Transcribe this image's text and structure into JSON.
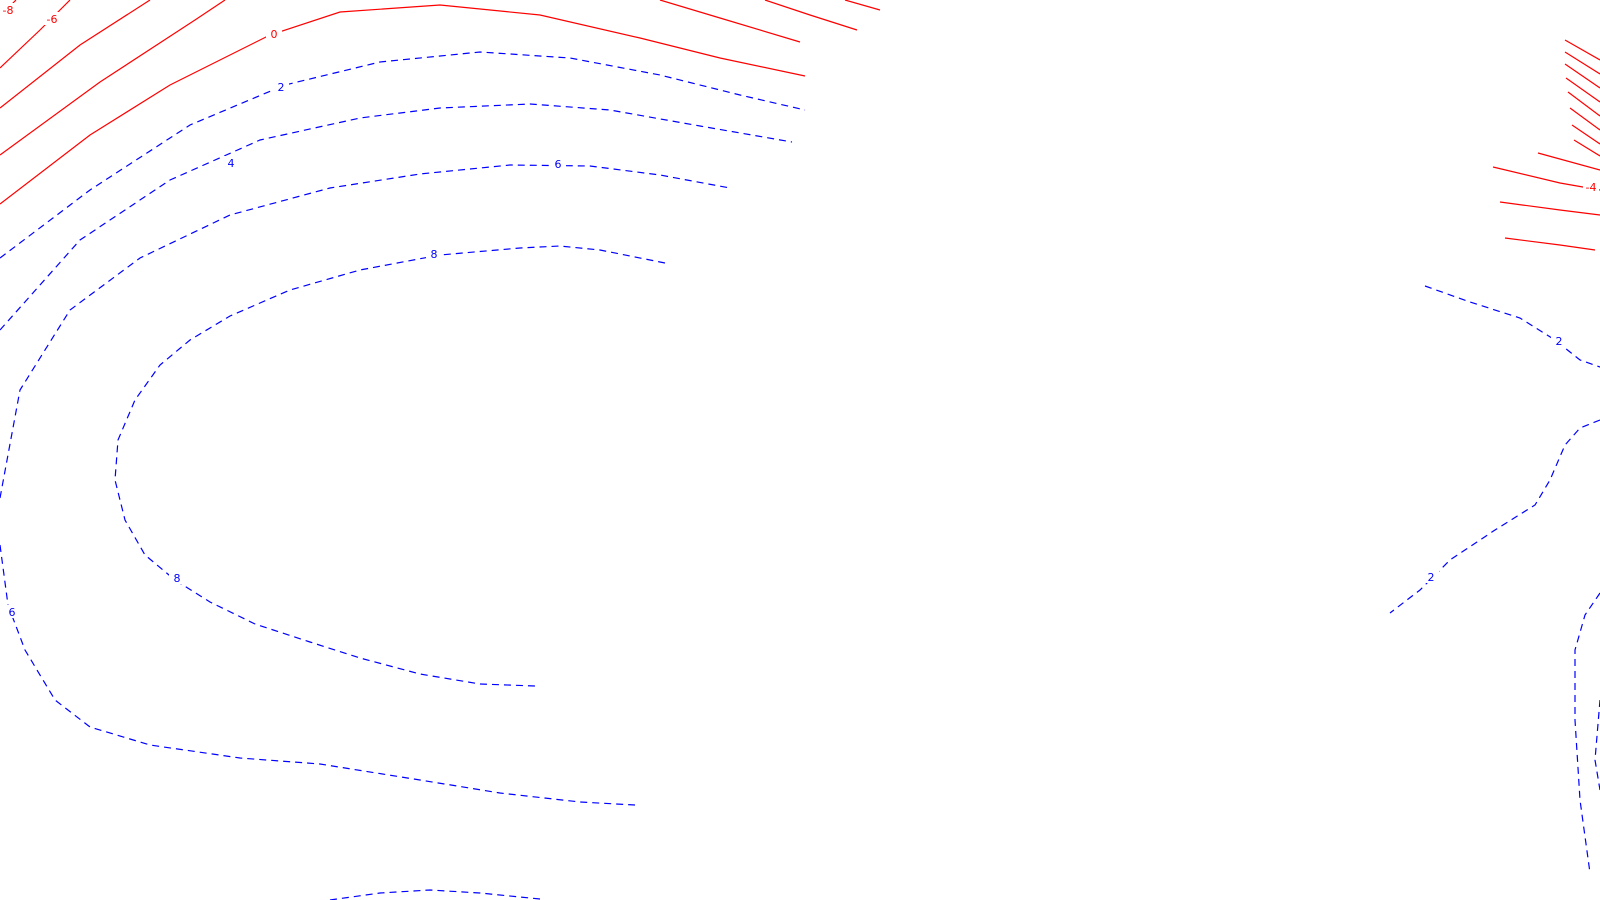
{
  "chart_data": {
    "type": "contour",
    "title": "",
    "xlabel": "",
    "ylabel": "",
    "grid": false,
    "legend": "none",
    "colors": {
      "negative": "#ff0000",
      "positive": "#0000ff"
    },
    "line_styles": {
      "negative": "solid",
      "positive": "dashed"
    },
    "labels": [
      {
        "group": "left",
        "level": "-8",
        "sign": "negative"
      },
      {
        "group": "left",
        "level": "-6",
        "sign": "negative"
      },
      {
        "group": "left",
        "level": "0",
        "sign": "negative"
      },
      {
        "group": "left",
        "level": "2",
        "sign": "positive"
      },
      {
        "group": "left",
        "level": "4",
        "sign": "positive"
      },
      {
        "group": "left",
        "level": "6",
        "sign": "positive"
      },
      {
        "group": "left",
        "level": "8",
        "sign": "positive"
      },
      {
        "group": "left",
        "level": "8",
        "sign": "positive"
      },
      {
        "group": "left",
        "level": "6",
        "sign": "positive"
      },
      {
        "group": "right",
        "level": "-4",
        "sign": "negative"
      },
      {
        "group": "right",
        "level": "2",
        "sign": "positive"
      },
      {
        "group": "right",
        "level": "2",
        "sign": "positive"
      }
    ]
  }
}
